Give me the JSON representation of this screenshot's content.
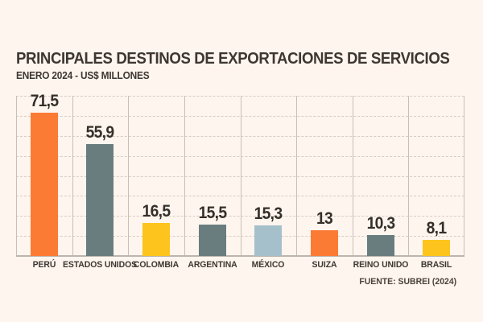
{
  "title": "PRINCIPALES DESTINOS DE EXPORTACIONES DE SERVICIOS",
  "subtitle": "ENERO 2024 - US$ MILLONES",
  "source": "FUENTE: SUBREI (2024)",
  "colors": {
    "background": "#FDF5EE",
    "text": "#3E3731",
    "orange": "#FB7B35",
    "slate": "#697D7F",
    "yellow": "#FCC41C",
    "lightblue": "#A5C0CB",
    "grid_vertical": "#C8C0B8",
    "grid_horizontal_dashed": "#D8CEC5",
    "baseline": "#BDB5AD"
  },
  "chart_data": {
    "type": "bar",
    "title": "PRINCIPALES DESTINOS DE EXPORTACIONES DE SERVICIOS",
    "subtitle": "ENERO 2024 - US$ MILLONES",
    "categories": [
      "PERÚ",
      "ESTADOS UNIDOS",
      "COLOMBIA",
      "ARGENTINA",
      "MÉXICO",
      "SUIZA",
      "REINO UNIDO",
      "BRASIL"
    ],
    "values": [
      71.5,
      55.9,
      16.5,
      15.5,
      15.3,
      13,
      10.3,
      8.1
    ],
    "value_labels": [
      "71,5",
      "55,9",
      "16,5",
      "15,5",
      "15,3",
      "13",
      "10,3",
      "8,1"
    ],
    "bar_color_keys": [
      "orange",
      "slate",
      "yellow",
      "slate",
      "lightblue",
      "orange",
      "slate",
      "yellow"
    ],
    "xlabel": "",
    "ylabel": "",
    "ylim": [
      0,
      80
    ],
    "gridline_step": 10,
    "grid": "horizontal dashed lines every 10 units; solid vertical column separators; no y-axis tick labels",
    "legend": "none",
    "source": "FUENTE: SUBREI (2024)"
  }
}
